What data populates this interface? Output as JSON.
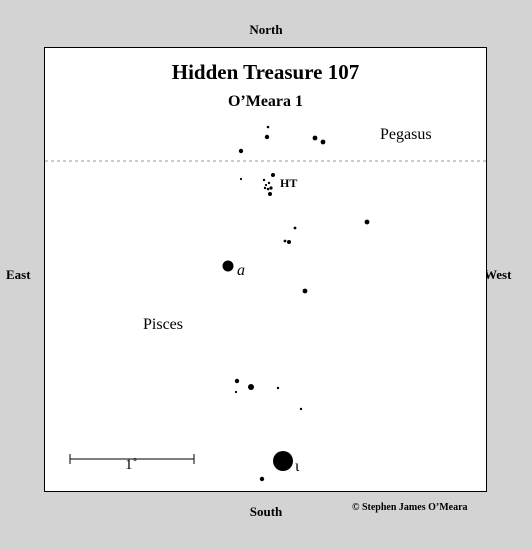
{
  "compass": {
    "north": "North",
    "south": "South",
    "east": "East",
    "west": "West"
  },
  "chart": {
    "title": "Hidden Treasure 107",
    "subtitle": "O’Meara 1",
    "constellations": {
      "upper": "Pegasus",
      "lower": "Pisces"
    },
    "object_label": "HT",
    "star_labels": {
      "alpha": "a",
      "iota": "ι"
    },
    "scale_bar_label": "1˚",
    "credit": "© Stephen James O’Meara",
    "colors": {
      "background": "#d3d3d3",
      "chart": "#ffffff",
      "ink": "#000000",
      "boundary": "#9a9a9a"
    }
  }
}
